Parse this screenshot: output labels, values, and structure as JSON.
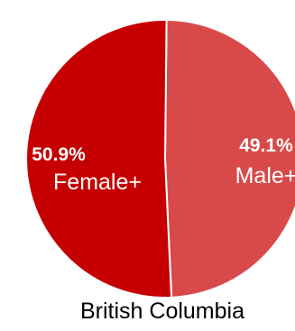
{
  "chart_data": {
    "type": "pie",
    "categories": [
      "Male+",
      "Female+"
    ],
    "values": [
      49.1,
      50.9
    ],
    "value_labels": [
      "49.1%",
      "50.9%"
    ],
    "colors": [
      "#d84a4a",
      "#c60000"
    ],
    "slice_border_color": "#ffffff",
    "caption": "British Columbia"
  }
}
